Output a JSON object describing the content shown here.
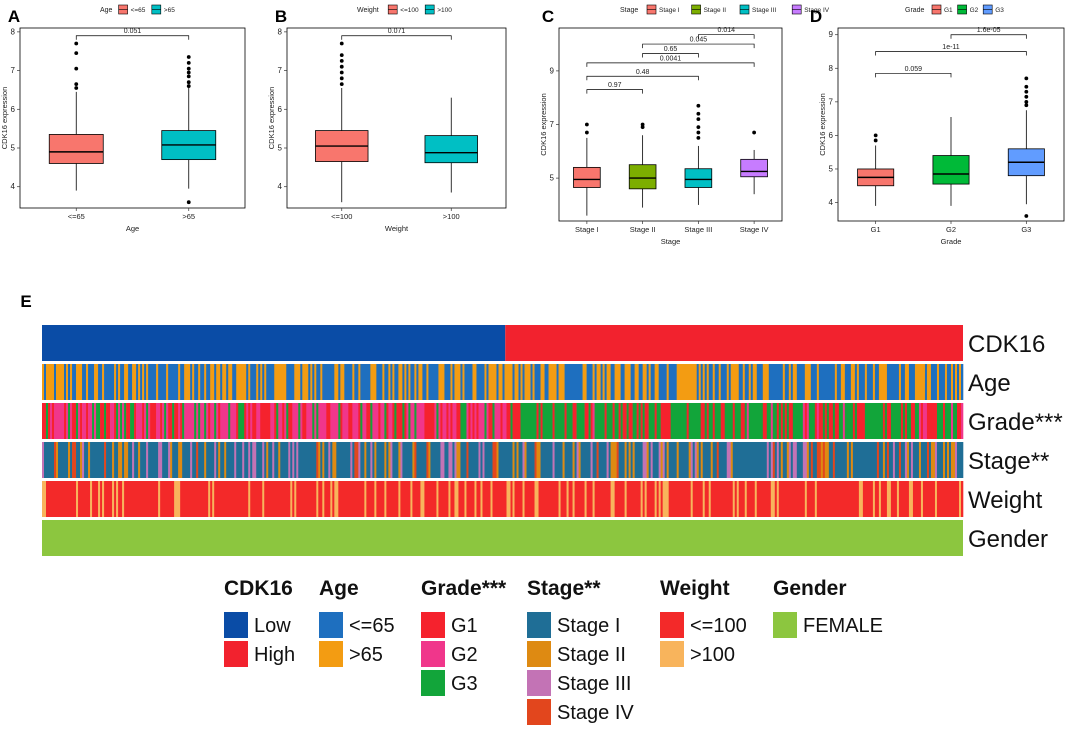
{
  "chart_data": [
    {
      "panel": "A",
      "type": "box",
      "legend_title": "Age",
      "ylabel": "CDK16  expression",
      "xlabel": "Age",
      "ylim": [
        3.45,
        8.1
      ],
      "yticks": [
        4,
        5,
        6,
        7,
        8
      ],
      "categories": [
        "<=65",
        ">65"
      ],
      "colors": [
        "#F8766D",
        "#00BFC4"
      ],
      "boxes": [
        {
          "q1": 4.6,
          "median": 4.9,
          "q3": 5.35,
          "wlo": 3.9,
          "whi": 6.45,
          "outliers": [
            6.55,
            6.65,
            7.05,
            7.45,
            7.7
          ]
        },
        {
          "q1": 4.7,
          "median": 5.08,
          "q3": 5.45,
          "wlo": 3.95,
          "whi": 6.55,
          "outliers": [
            3.6,
            6.6,
            6.7,
            6.85,
            6.95,
            7.05,
            7.2,
            7.35
          ]
        }
      ],
      "comparisons": [
        {
          "from": 0,
          "to": 1,
          "label": "0.051",
          "y": 7.9
        }
      ]
    },
    {
      "panel": "B",
      "type": "box",
      "legend_title": "Weight",
      "ylabel": "CDK16  expression",
      "xlabel": "Weight",
      "ylim": [
        3.45,
        8.1
      ],
      "yticks": [
        4,
        5,
        6,
        7,
        8
      ],
      "categories": [
        "<=100",
        ">100"
      ],
      "colors": [
        "#F8766D",
        "#00BFC4"
      ],
      "boxes": [
        {
          "q1": 4.65,
          "median": 5.05,
          "q3": 5.45,
          "wlo": 3.6,
          "whi": 6.55,
          "outliers": [
            6.65,
            6.8,
            6.95,
            7.1,
            7.25,
            7.4,
            7.7
          ]
        },
        {
          "q1": 4.62,
          "median": 4.88,
          "q3": 5.32,
          "wlo": 3.85,
          "whi": 6.3,
          "outliers": []
        }
      ],
      "comparisons": [
        {
          "from": 0,
          "to": 1,
          "label": "0.071",
          "y": 7.9
        }
      ]
    },
    {
      "panel": "C",
      "type": "box",
      "legend_title": "Stage",
      "ylabel": "CDK16  expression",
      "xlabel": "Stage",
      "ylim": [
        3.4,
        10.6
      ],
      "yticks": [
        5,
        7,
        9
      ],
      "categories": [
        "Stage I",
        "Stage II",
        "Stage III",
        "Stage IV"
      ],
      "colors": [
        "#F8766D",
        "#7CAE00",
        "#00BFC4",
        "#C77CFF"
      ],
      "boxes": [
        {
          "q1": 4.65,
          "median": 4.95,
          "q3": 5.4,
          "wlo": 3.6,
          "whi": 6.5,
          "outliers": [
            6.7,
            7.0
          ]
        },
        {
          "q1": 4.6,
          "median": 5.0,
          "q3": 5.5,
          "wlo": 3.9,
          "whi": 6.6,
          "outliers": [
            6.9,
            7.0
          ]
        },
        {
          "q1": 4.65,
          "median": 4.95,
          "q3": 5.35,
          "wlo": 4.0,
          "whi": 6.2,
          "outliers": [
            6.5,
            6.7,
            6.9,
            7.2,
            7.4,
            7.7
          ]
        },
        {
          "q1": 5.05,
          "median": 5.25,
          "q3": 5.7,
          "wlo": 4.4,
          "whi": 6.05,
          "outliers": [
            6.7
          ]
        }
      ],
      "comparisons": [
        {
          "from": 0,
          "to": 1,
          "label": "0.97",
          "y": 8.3
        },
        {
          "from": 0,
          "to": 2,
          "label": "0.48",
          "y": 8.8
        },
        {
          "from": 0,
          "to": 3,
          "label": "0.0041",
          "y": 9.3
        },
        {
          "from": 1,
          "to": 2,
          "label": "0.65",
          "y": 9.65
        },
        {
          "from": 1,
          "to": 3,
          "label": "0.045",
          "y": 10.0
        },
        {
          "from": 2,
          "to": 3,
          "label": "0.014",
          "y": 10.35
        }
      ]
    },
    {
      "panel": "D",
      "type": "box",
      "legend_title": "Grade",
      "ylabel": "CDK16  expression",
      "xlabel": "Grade",
      "ylim": [
        3.45,
        9.2
      ],
      "yticks": [
        4,
        5,
        6,
        7,
        8,
        9
      ],
      "categories": [
        "G1",
        "G2",
        "G3"
      ],
      "colors": [
        "#F8766D",
        "#00BA38",
        "#619CFF"
      ],
      "boxes": [
        {
          "q1": 4.5,
          "median": 4.75,
          "q3": 5.0,
          "wlo": 3.9,
          "whi": 5.7,
          "outliers": [
            5.85,
            6.0
          ]
        },
        {
          "q1": 4.55,
          "median": 4.85,
          "q3": 5.4,
          "wlo": 3.9,
          "whi": 6.55,
          "outliers": []
        },
        {
          "q1": 4.8,
          "median": 5.2,
          "q3": 5.6,
          "wlo": 3.95,
          "whi": 6.75,
          "outliers": [
            3.6,
            6.9,
            7.0,
            7.15,
            7.3,
            7.45,
            7.7
          ]
        }
      ],
      "comparisons": [
        {
          "from": 0,
          "to": 1,
          "label": "0.059",
          "y": 7.85
        },
        {
          "from": 0,
          "to": 2,
          "label": "1e-11",
          "y": 8.5
        },
        {
          "from": 1,
          "to": 2,
          "label": "1.6e-05",
          "y": 9.0
        }
      ]
    },
    {
      "panel": "E",
      "type": "heatmap",
      "rows": [
        "CDK16",
        "Age",
        "Grade***",
        "Stage**",
        "Weight",
        "Gender"
      ],
      "legends": [
        {
          "title": "CDK16",
          "items": [
            {
              "label": "Low",
              "color": "#0A4CA6"
            },
            {
              "label": "High",
              "color": "#F2222E"
            }
          ]
        },
        {
          "title": "Age",
          "items": [
            {
              "label": "<=65",
              "color": "#1E6FBF"
            },
            {
              "label": ">65",
              "color": "#F39C12"
            }
          ]
        },
        {
          "title": "Grade***",
          "items": [
            {
              "label": "G1",
              "color": "#F5222D"
            },
            {
              "label": "G2",
              "color": "#F0368B"
            },
            {
              "label": "G3",
              "color": "#12A53A"
            }
          ]
        },
        {
          "title": "Stage**",
          "items": [
            {
              "label": "Stage I",
              "color": "#1F6E96"
            },
            {
              "label": "Stage II",
              "color": "#DE8A12"
            },
            {
              "label": "Stage III",
              "color": "#C373B5"
            },
            {
              "label": "Stage IV",
              "color": "#E2461D"
            }
          ]
        },
        {
          "title": "Weight",
          "items": [
            {
              "label": "<=100",
              "color": "#F32929"
            },
            {
              "label": ">100",
              "color": "#F8B45C"
            }
          ]
        },
        {
          "title": "Gender",
          "items": [
            {
              "label": "FEMALE",
              "color": "#8CC63F"
            }
          ]
        }
      ]
    }
  ]
}
